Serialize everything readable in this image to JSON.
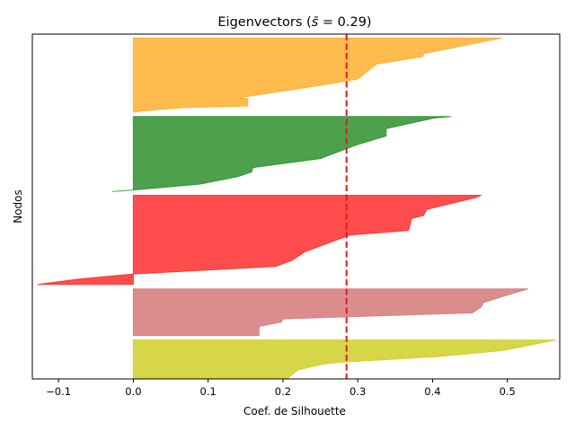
{
  "chart_data": {
    "type": "area",
    "title": "Eigenvectors ($\\bar{s}$ = 0.29)",
    "title_text": "Eigenvectors (",
    "title_symbol": "s̄",
    "title_tail": " = 0.29)",
    "xlabel": "Coef. de Silhouette",
    "ylabel": "Nodos",
    "xlim": [
      -0.135,
      0.57
    ],
    "ylim": [
      0,
      460
    ],
    "xticks": [
      -0.1,
      0.0,
      0.1,
      0.2,
      0.3,
      0.4,
      0.5
    ],
    "xtick_labels": [
      "−0.1",
      "0.0",
      "0.1",
      "0.2",
      "0.3",
      "0.4",
      "0.5"
    ],
    "yticks": [],
    "grid": false,
    "mean_line": {
      "x": 0.285,
      "color": "#e41a1c",
      "style": "dashed"
    },
    "clusters": [
      {
        "color": "#cccc1a",
        "y0": 0,
        "y1": 52,
        "profile": [
          [
            0.565,
            52
          ],
          [
            0.495,
            38
          ],
          [
            0.41,
            30
          ],
          [
            0.275,
            22
          ],
          [
            0.255,
            20
          ],
          [
            0.22,
            12
          ],
          [
            0.21,
            4
          ],
          [
            0.205,
            0
          ]
        ]
      },
      {
        "color": "#d27070",
        "y0": 58,
        "y1": 120,
        "profile": [
          [
            0.528,
            120
          ],
          [
            0.51,
            115
          ],
          [
            0.468,
            102
          ],
          [
            0.465,
            96
          ],
          [
            0.453,
            88
          ],
          [
            0.26,
            82
          ],
          [
            0.2,
            80
          ],
          [
            0.198,
            76
          ],
          [
            0.168,
            70
          ],
          [
            0.168,
            58
          ]
        ]
      },
      {
        "color": "#ff2020",
        "y0": 126,
        "y1": 245,
        "profile": [
          [
            0.465,
            245
          ],
          [
            0.458,
            242
          ],
          [
            0.392,
            226
          ],
          [
            0.388,
            218
          ],
          [
            0.372,
            214
          ],
          [
            0.368,
            198
          ],
          [
            0.29,
            192
          ],
          [
            0.23,
            170
          ],
          [
            0.212,
            158
          ],
          [
            0.19,
            150
          ],
          [
            0.0,
            140
          ],
          [
            -0.075,
            133
          ],
          [
            -0.128,
            126
          ]
        ]
      },
      {
        "color": "#208a20",
        "y0": 252,
        "y1": 350,
        "profile": [
          [
            0.425,
            350
          ],
          [
            0.402,
            348
          ],
          [
            0.338,
            334
          ],
          [
            0.338,
            324
          ],
          [
            0.298,
            312
          ],
          [
            0.25,
            294
          ],
          [
            0.16,
            282
          ],
          [
            0.158,
            276
          ],
          [
            0.14,
            270
          ],
          [
            0.09,
            260
          ],
          [
            0.0,
            252
          ],
          [
            -0.028,
            250
          ]
        ]
      },
      {
        "color": "#ffaa22",
        "y0": 356,
        "y1": 455,
        "profile": [
          [
            0.493,
            455
          ],
          [
            0.388,
            434
          ],
          [
            0.387,
            430
          ],
          [
            0.325,
            420
          ],
          [
            0.3,
            400
          ],
          [
            0.24,
            390
          ],
          [
            0.14,
            375
          ],
          [
            0.153,
            374
          ],
          [
            0.153,
            364
          ],
          [
            0.07,
            362
          ],
          [
            0.04,
            360
          ],
          [
            0.0,
            356
          ]
        ]
      }
    ]
  }
}
